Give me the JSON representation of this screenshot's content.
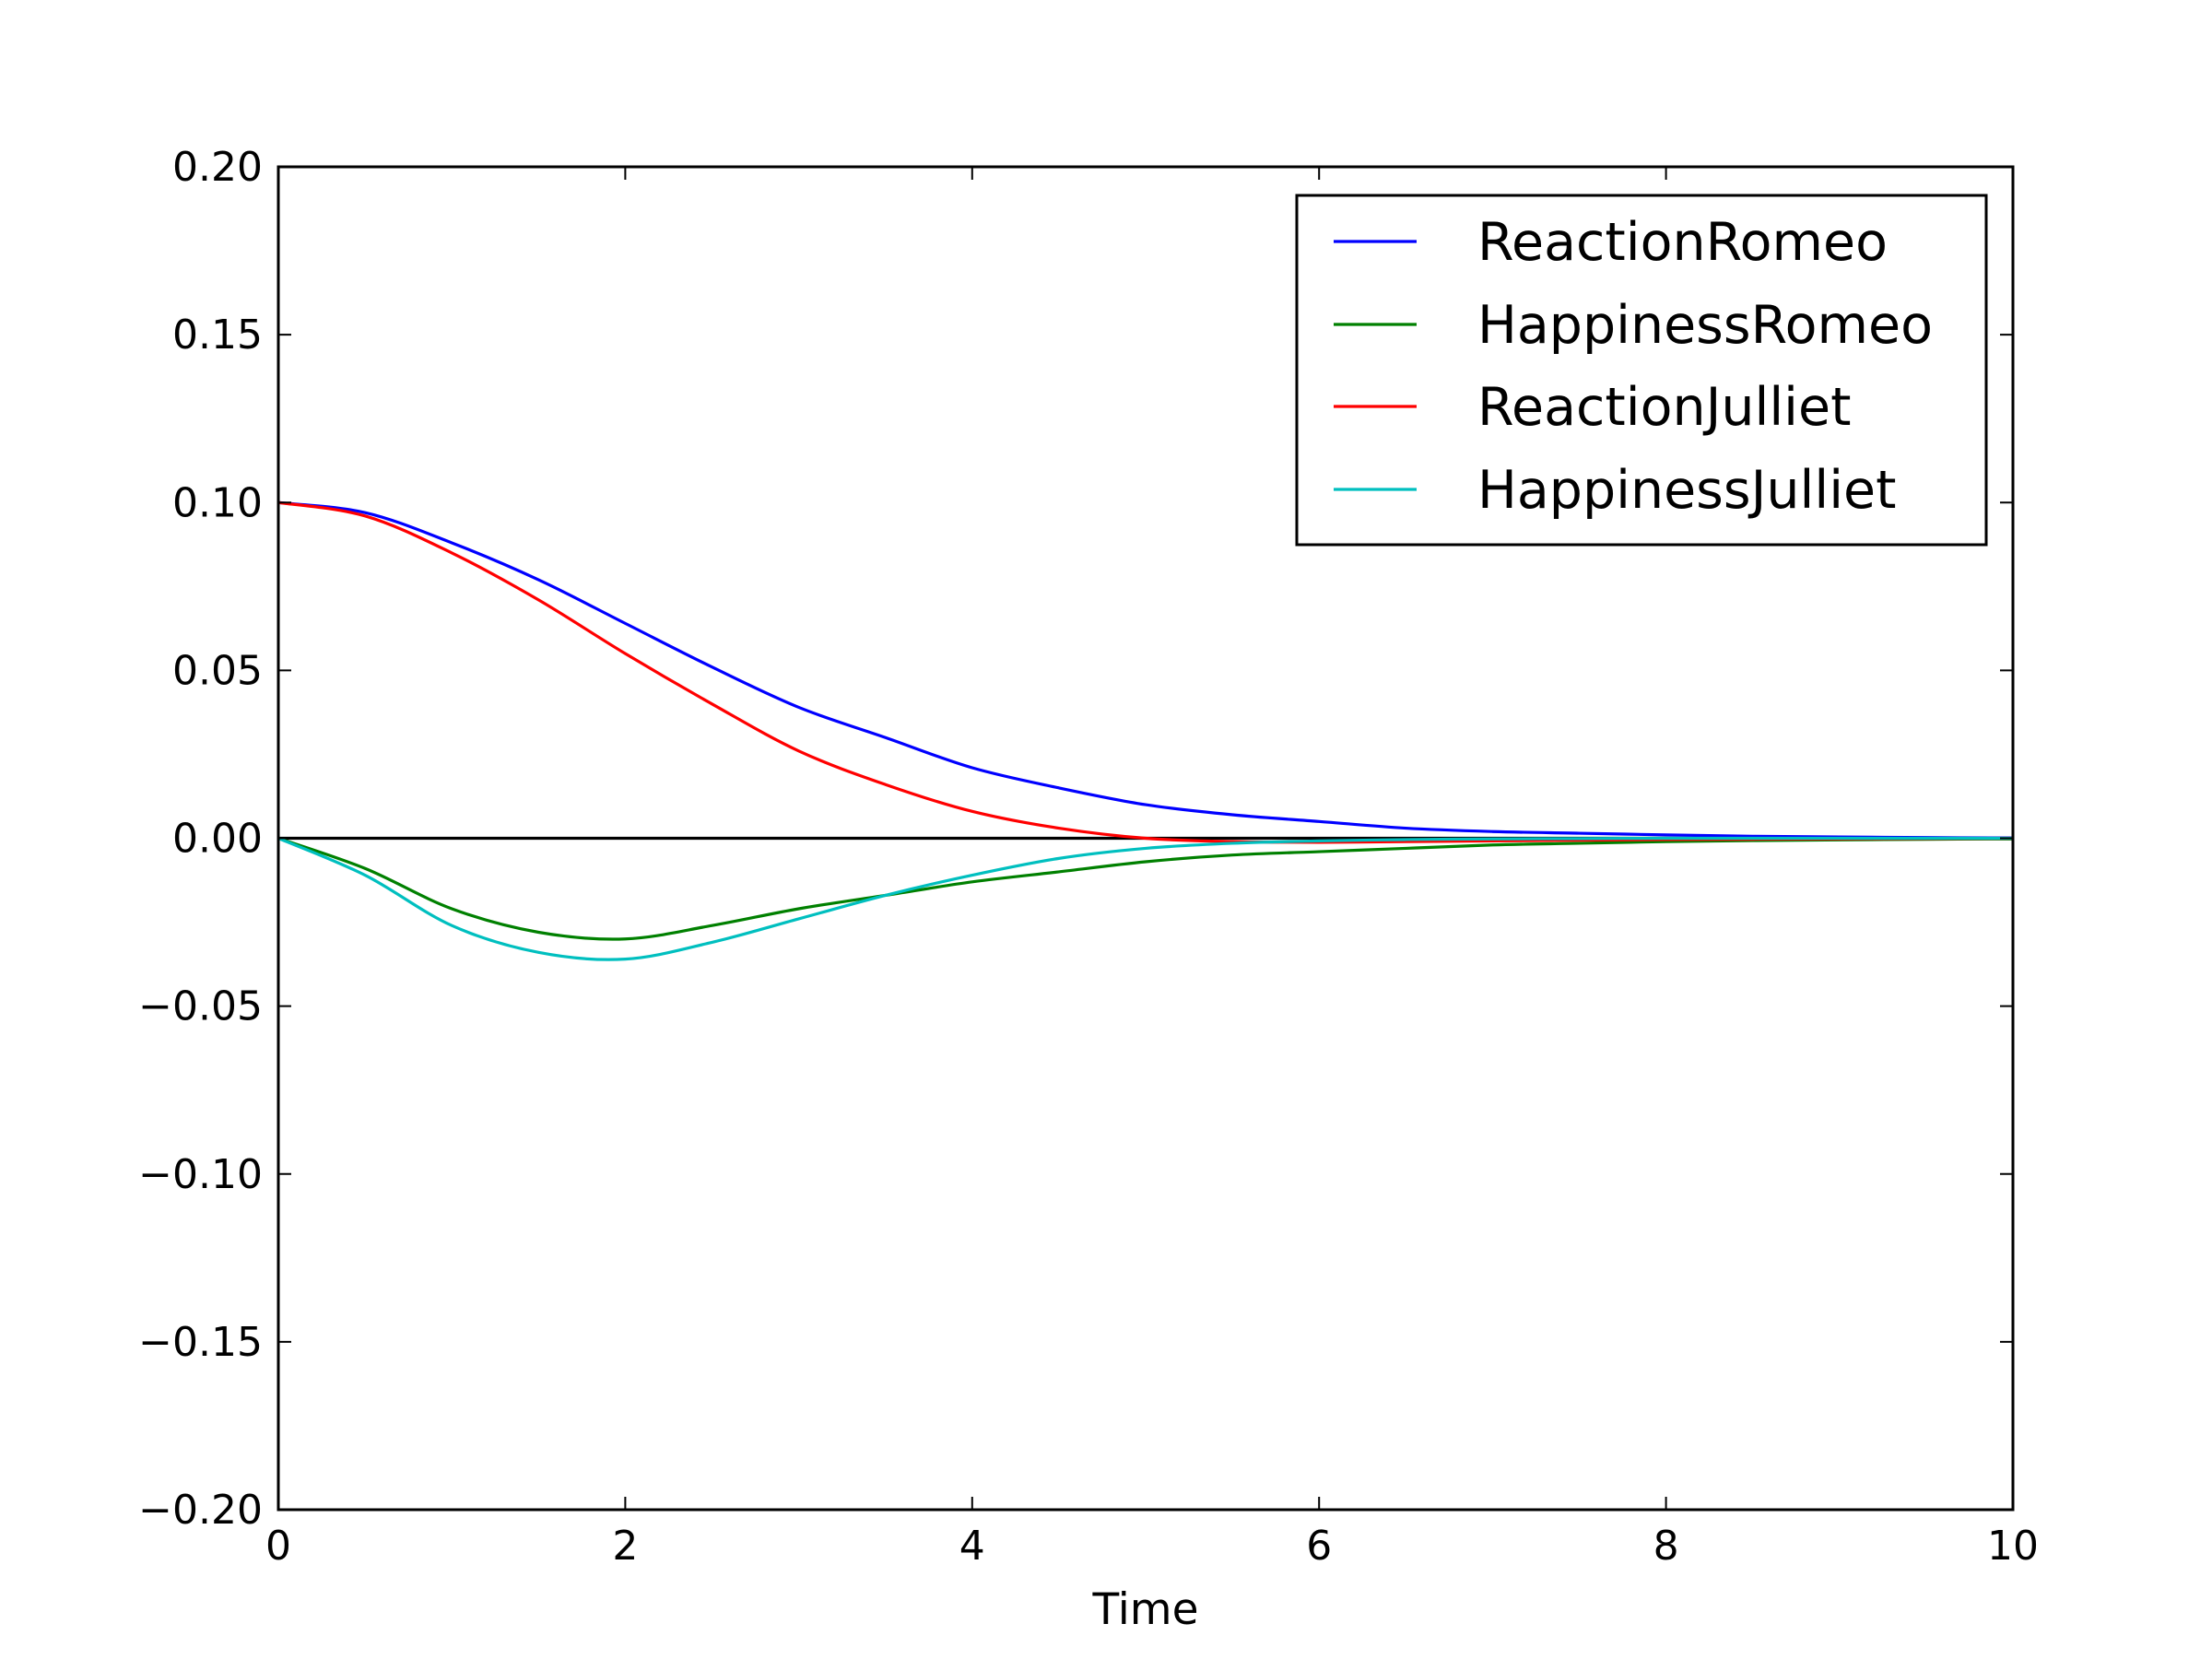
{
  "chart_data": {
    "type": "line",
    "title": "",
    "xlabel": "Time",
    "ylabel": "",
    "xlim": [
      0,
      10
    ],
    "ylim": [
      -0.2,
      0.2
    ],
    "xticks": [
      0,
      2,
      4,
      6,
      8,
      10
    ],
    "xtick_labels": [
      "0",
      "2",
      "4",
      "6",
      "8",
      "10"
    ],
    "yticks": [
      -0.2,
      -0.15,
      -0.1,
      -0.05,
      0.0,
      0.05,
      0.1,
      0.15,
      0.2
    ],
    "ytick_labels": [
      "−0.20",
      "−0.15",
      "−0.10",
      "−0.05",
      "0.00",
      "0.05",
      "0.10",
      "0.15",
      "0.20"
    ],
    "grid": false,
    "legend_position": "top-right",
    "x": [
      0,
      0.5,
      1,
      1.5,
      2,
      2.5,
      3,
      3.5,
      4,
      4.5,
      5,
      5.5,
      6,
      6.5,
      7,
      7.5,
      8,
      8.5,
      9,
      9.5,
      10
    ],
    "series": [
      {
        "name": "ReactionRomeo",
        "color": "#0000ff",
        "values": [
          0.1,
          0.097,
          0.088,
          0.077,
          0.064,
          0.051,
          0.039,
          0.03,
          0.021,
          0.015,
          0.01,
          0.007,
          0.005,
          0.003,
          0.002,
          0.0015,
          0.001,
          0.0006,
          0.0004,
          0.0002,
          0.0001
        ]
      },
      {
        "name": "HappinessRomeo",
        "color": "#008000",
        "values": [
          0,
          -0.009,
          -0.021,
          -0.028,
          -0.03,
          -0.026,
          -0.021,
          -0.017,
          -0.013,
          -0.01,
          -0.007,
          -0.005,
          -0.004,
          -0.003,
          -0.002,
          -0.0015,
          -0.001,
          -0.0007,
          -0.0005,
          -0.0003,
          -0.0002
        ]
      },
      {
        "name": "ReactionJulliet",
        "color": "#ff0000",
        "values": [
          0.1,
          0.096,
          0.085,
          0.071,
          0.055,
          0.04,
          0.026,
          0.016,
          0.008,
          0.003,
          0,
          -0.001,
          -0.0012,
          -0.001,
          -0.0008,
          -0.0006,
          -0.0004,
          -0.0003,
          -0.0002,
          -0.0001,
          0
        ]
      },
      {
        "name": "HappinessJulliet",
        "color": "#00bfbf",
        "values": [
          0,
          -0.011,
          -0.026,
          -0.034,
          -0.036,
          -0.031,
          -0.024,
          -0.017,
          -0.011,
          -0.006,
          -0.003,
          -0.0015,
          -0.0008,
          -0.0004,
          -0.0002,
          -0.0001,
          0,
          0,
          0,
          0,
          0
        ]
      }
    ],
    "reference_line": {
      "y": 0,
      "color": "#000000"
    }
  }
}
